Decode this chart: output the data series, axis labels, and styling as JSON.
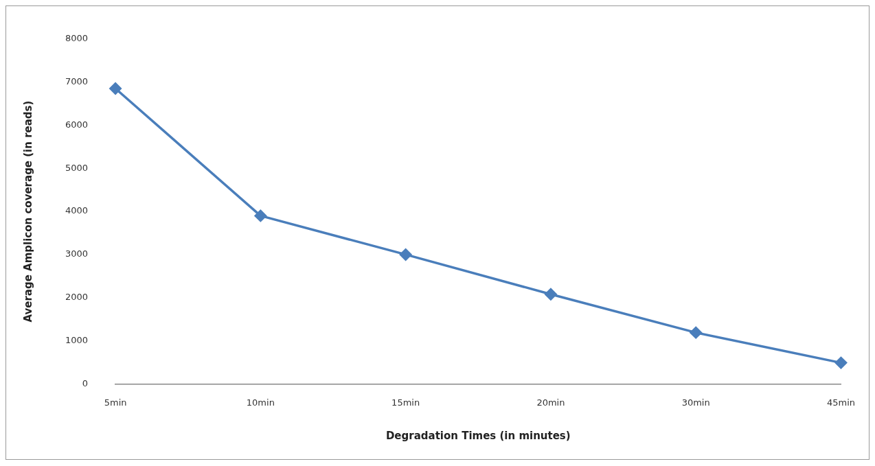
{
  "chart_data": {
    "type": "line",
    "xlabel": "Degradation Times (in minutes)",
    "ylabel": "Average Amplicon coverage (in reads)",
    "categories": [
      "5min",
      "10min",
      "15min",
      "20min",
      "30min",
      "45min"
    ],
    "series": [
      {
        "color": "#4a7ebb",
        "values": [
          6850,
          3900,
          3000,
          2080,
          1190,
          490
        ]
      }
    ],
    "ylim": [
      0,
      8000
    ],
    "yticks": [
      0,
      1000,
      2000,
      3000,
      4000,
      5000,
      6000,
      7000,
      8000
    ],
    "grid": false,
    "legend": false,
    "marker": "diamond",
    "line_style": "solid"
  }
}
